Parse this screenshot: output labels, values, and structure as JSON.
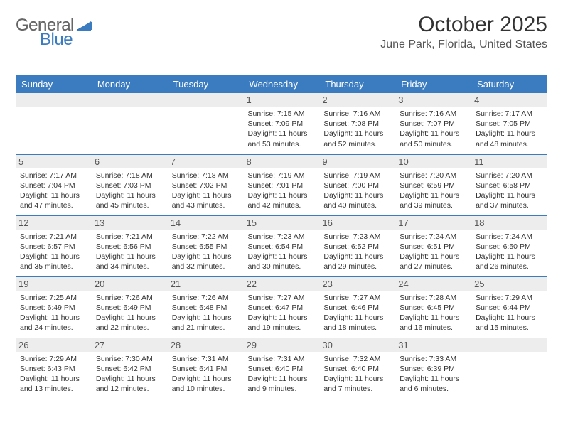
{
  "logo": {
    "general": "General",
    "blue": "Blue"
  },
  "header": {
    "month_title": "October 2025",
    "location": "June Park, Florida, United States"
  },
  "colors": {
    "header_bg": "#3b7bbf",
    "header_text": "#ffffff",
    "daynum_bg": "#ededed",
    "border": "#3b7bbf",
    "text": "#333333",
    "logo_gray": "#666666",
    "logo_blue": "#3b7bbf"
  },
  "calendar": {
    "day_headers": [
      "Sunday",
      "Monday",
      "Tuesday",
      "Wednesday",
      "Thursday",
      "Friday",
      "Saturday"
    ],
    "weeks": [
      [
        null,
        null,
        null,
        {
          "n": "1",
          "sr": "7:15 AM",
          "ss": "7:09 PM",
          "dl": "11 hours and 53 minutes."
        },
        {
          "n": "2",
          "sr": "7:16 AM",
          "ss": "7:08 PM",
          "dl": "11 hours and 52 minutes."
        },
        {
          "n": "3",
          "sr": "7:16 AM",
          "ss": "7:07 PM",
          "dl": "11 hours and 50 minutes."
        },
        {
          "n": "4",
          "sr": "7:17 AM",
          "ss": "7:05 PM",
          "dl": "11 hours and 48 minutes."
        }
      ],
      [
        {
          "n": "5",
          "sr": "7:17 AM",
          "ss": "7:04 PM",
          "dl": "11 hours and 47 minutes."
        },
        {
          "n": "6",
          "sr": "7:18 AM",
          "ss": "7:03 PM",
          "dl": "11 hours and 45 minutes."
        },
        {
          "n": "7",
          "sr": "7:18 AM",
          "ss": "7:02 PM",
          "dl": "11 hours and 43 minutes."
        },
        {
          "n": "8",
          "sr": "7:19 AM",
          "ss": "7:01 PM",
          "dl": "11 hours and 42 minutes."
        },
        {
          "n": "9",
          "sr": "7:19 AM",
          "ss": "7:00 PM",
          "dl": "11 hours and 40 minutes."
        },
        {
          "n": "10",
          "sr": "7:20 AM",
          "ss": "6:59 PM",
          "dl": "11 hours and 39 minutes."
        },
        {
          "n": "11",
          "sr": "7:20 AM",
          "ss": "6:58 PM",
          "dl": "11 hours and 37 minutes."
        }
      ],
      [
        {
          "n": "12",
          "sr": "7:21 AM",
          "ss": "6:57 PM",
          "dl": "11 hours and 35 minutes."
        },
        {
          "n": "13",
          "sr": "7:21 AM",
          "ss": "6:56 PM",
          "dl": "11 hours and 34 minutes."
        },
        {
          "n": "14",
          "sr": "7:22 AM",
          "ss": "6:55 PM",
          "dl": "11 hours and 32 minutes."
        },
        {
          "n": "15",
          "sr": "7:23 AM",
          "ss": "6:54 PM",
          "dl": "11 hours and 30 minutes."
        },
        {
          "n": "16",
          "sr": "7:23 AM",
          "ss": "6:52 PM",
          "dl": "11 hours and 29 minutes."
        },
        {
          "n": "17",
          "sr": "7:24 AM",
          "ss": "6:51 PM",
          "dl": "11 hours and 27 minutes."
        },
        {
          "n": "18",
          "sr": "7:24 AM",
          "ss": "6:50 PM",
          "dl": "11 hours and 26 minutes."
        }
      ],
      [
        {
          "n": "19",
          "sr": "7:25 AM",
          "ss": "6:49 PM",
          "dl": "11 hours and 24 minutes."
        },
        {
          "n": "20",
          "sr": "7:26 AM",
          "ss": "6:49 PM",
          "dl": "11 hours and 22 minutes."
        },
        {
          "n": "21",
          "sr": "7:26 AM",
          "ss": "6:48 PM",
          "dl": "11 hours and 21 minutes."
        },
        {
          "n": "22",
          "sr": "7:27 AM",
          "ss": "6:47 PM",
          "dl": "11 hours and 19 minutes."
        },
        {
          "n": "23",
          "sr": "7:27 AM",
          "ss": "6:46 PM",
          "dl": "11 hours and 18 minutes."
        },
        {
          "n": "24",
          "sr": "7:28 AM",
          "ss": "6:45 PM",
          "dl": "11 hours and 16 minutes."
        },
        {
          "n": "25",
          "sr": "7:29 AM",
          "ss": "6:44 PM",
          "dl": "11 hours and 15 minutes."
        }
      ],
      [
        {
          "n": "26",
          "sr": "7:29 AM",
          "ss": "6:43 PM",
          "dl": "11 hours and 13 minutes."
        },
        {
          "n": "27",
          "sr": "7:30 AM",
          "ss": "6:42 PM",
          "dl": "11 hours and 12 minutes."
        },
        {
          "n": "28",
          "sr": "7:31 AM",
          "ss": "6:41 PM",
          "dl": "11 hours and 10 minutes."
        },
        {
          "n": "29",
          "sr": "7:31 AM",
          "ss": "6:40 PM",
          "dl": "11 hours and 9 minutes."
        },
        {
          "n": "30",
          "sr": "7:32 AM",
          "ss": "6:40 PM",
          "dl": "11 hours and 7 minutes."
        },
        {
          "n": "31",
          "sr": "7:33 AM",
          "ss": "6:39 PM",
          "dl": "11 hours and 6 minutes."
        },
        null
      ]
    ],
    "labels": {
      "sunrise": "Sunrise:",
      "sunset": "Sunset:",
      "daylight": "Daylight:"
    }
  }
}
